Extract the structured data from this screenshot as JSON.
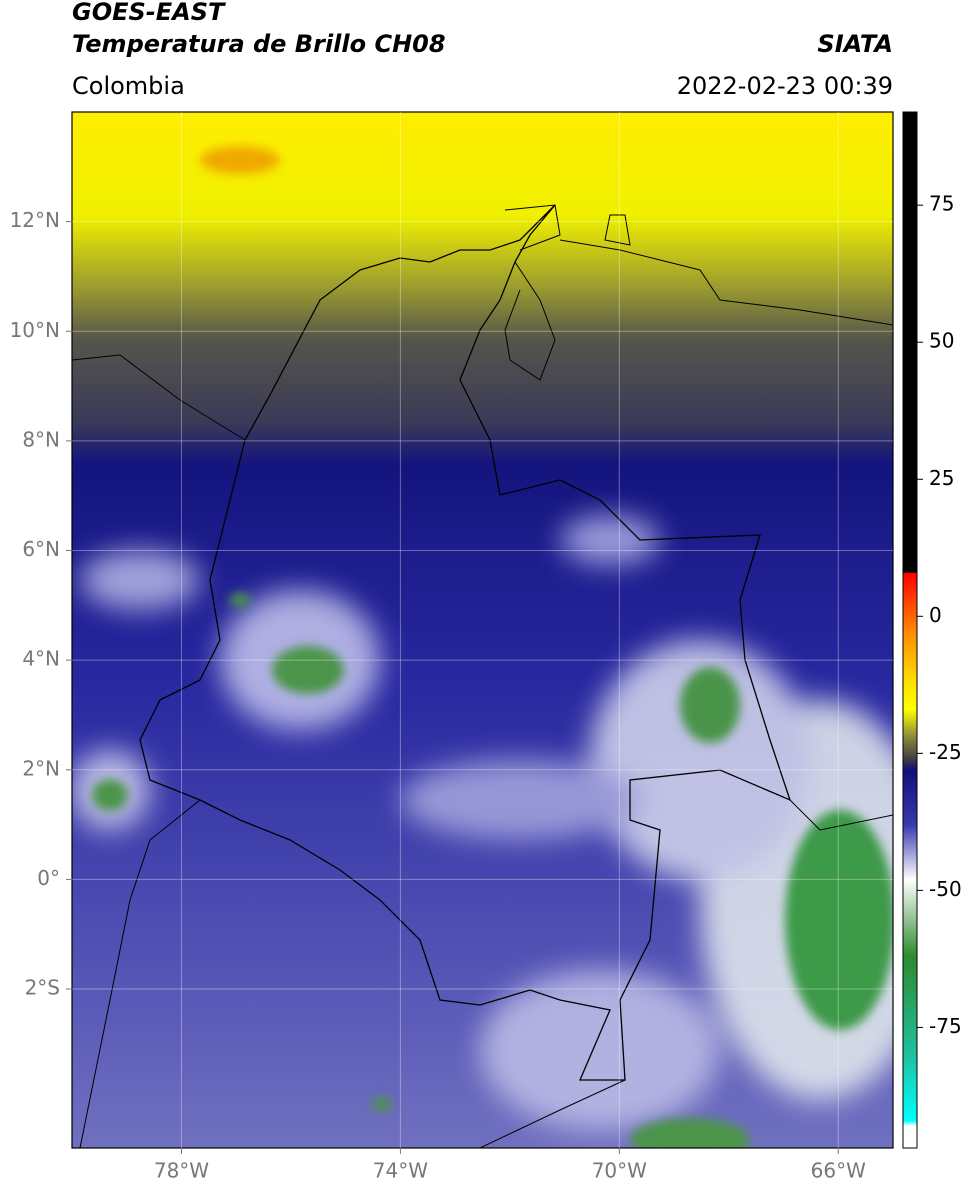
{
  "header": {
    "title": "GOES-EAST",
    "subtitle": "Temperatura de Brillo CH08",
    "source": "SIATA",
    "region": "Colombia",
    "datetime": "2022-02-23 00:39"
  },
  "map": {
    "xlim": [
      -80,
      -65
    ],
    "ylim": [
      -4.9,
      14
    ],
    "xticks": [
      {
        "value": -78,
        "label": "78°W"
      },
      {
        "value": -74,
        "label": "74°W"
      },
      {
        "value": -70,
        "label": "70°W"
      },
      {
        "value": -66,
        "label": "66°W"
      }
    ],
    "yticks": [
      {
        "value": 12,
        "label": "12°N"
      },
      {
        "value": 10,
        "label": "10°N"
      },
      {
        "value": 8,
        "label": "8°N"
      },
      {
        "value": 6,
        "label": "6°N"
      },
      {
        "value": 4,
        "label": "4°N"
      },
      {
        "value": 2,
        "label": "2°N"
      },
      {
        "value": 0,
        "label": "0°"
      },
      {
        "value": -2,
        "label": "2°S"
      }
    ],
    "grid": true
  },
  "colorbar": {
    "lim": [
      -97,
      92
    ],
    "ticks": [
      75,
      50,
      25,
      0,
      -25,
      -50,
      -75
    ],
    "stops": [
      {
        "value": 92,
        "color": "#000000"
      },
      {
        "value": 8,
        "color": "#000000"
      },
      {
        "value": 7.9,
        "color": "#ff0000"
      },
      {
        "value": -3,
        "color": "#ff8c00"
      },
      {
        "value": -12,
        "color": "#ffe000"
      },
      {
        "value": -17,
        "color": "#ffff00"
      },
      {
        "value": -22,
        "color": "#8a8a3a"
      },
      {
        "value": -26,
        "color": "#404040"
      },
      {
        "value": -28,
        "color": "#10107a"
      },
      {
        "value": -38,
        "color": "#3838b0"
      },
      {
        "value": -48,
        "color": "#ffffff"
      },
      {
        "value": -62,
        "color": "#2e8b2e"
      },
      {
        "value": -80,
        "color": "#20c0a0"
      },
      {
        "value": -92,
        "color": "#00ffff"
      },
      {
        "value": -93,
        "color": "#ffffff"
      },
      {
        "value": -97,
        "color": "#ffffff"
      }
    ]
  }
}
